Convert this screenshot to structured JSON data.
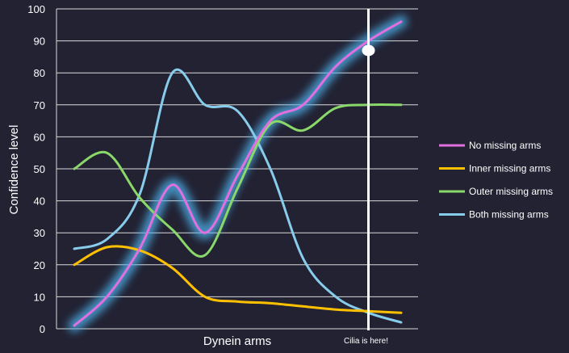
{
  "chart_data": {
    "type": "line",
    "title": "",
    "xlabel": "Dynein arms",
    "ylabel": "Confidence level",
    "ylim": [
      0,
      100
    ],
    "yticks": [
      0,
      10,
      20,
      30,
      40,
      50,
      60,
      70,
      80,
      90,
      100
    ],
    "xlim": [
      0,
      10
    ],
    "grid": true,
    "legend_position": "right",
    "series": [
      {
        "name": "No missing arms",
        "color": "#e070e0",
        "glow": true,
        "x": [
          0,
          1,
          2,
          3,
          4,
          5,
          6,
          7,
          8,
          9,
          10
        ],
        "values": [
          1,
          10,
          25,
          45,
          30,
          48,
          65,
          70,
          82,
          90,
          96
        ]
      },
      {
        "name": "Inner missing arms",
        "color": "#ffc000",
        "glow": false,
        "x": [
          0,
          1,
          2,
          3,
          4,
          5,
          6,
          7,
          8,
          9,
          10
        ],
        "values": [
          20,
          25.5,
          24.5,
          19,
          10,
          8.5,
          8,
          7,
          6,
          5.5,
          5
        ]
      },
      {
        "name": "Outer missing arms",
        "color": "#8ad86a",
        "glow": false,
        "x": [
          0,
          1,
          2,
          3,
          4,
          5,
          6,
          7,
          8,
          9,
          10
        ],
        "values": [
          50,
          55,
          41,
          31,
          23,
          44,
          64,
          62,
          69,
          70,
          70
        ]
      },
      {
        "name": "Both missing arms",
        "color": "#88ccec",
        "glow": false,
        "x": [
          0,
          1,
          2,
          3,
          4,
          5,
          6,
          7,
          8,
          9,
          10
        ],
        "values": [
          25,
          28,
          42,
          80,
          70,
          68,
          50,
          22,
          10,
          5,
          2
        ]
      }
    ],
    "marker_line": {
      "x": 9,
      "label": "Cilia is here!",
      "color": "#ffffff"
    },
    "marker_point": {
      "x": 9,
      "y": 87,
      "color": "#ffffff"
    }
  }
}
